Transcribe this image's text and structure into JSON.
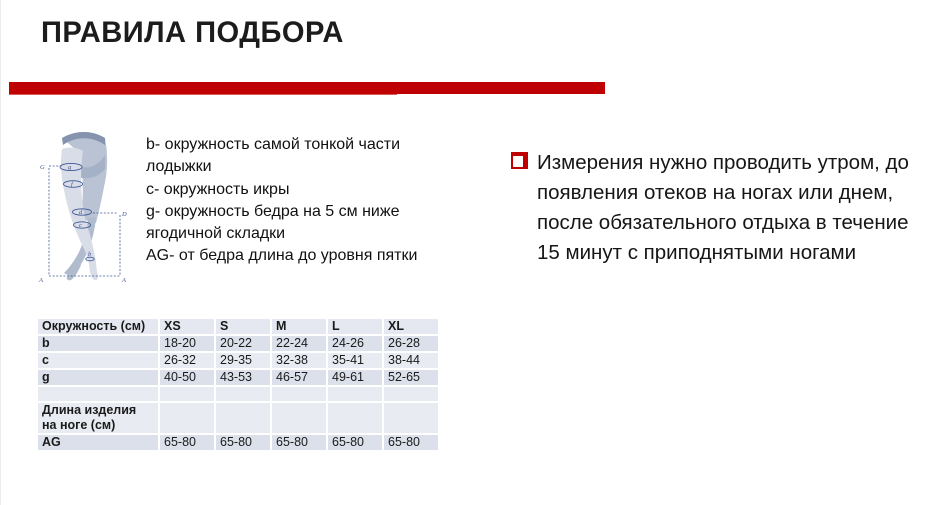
{
  "slide": {
    "title": "ПРАВИЛА ПОДБОРА",
    "accent_color_dark": "#c00101",
    "accent_color_light": "#dc5b58"
  },
  "diagram": {
    "name": "legs-measurement-diagram",
    "labels": {
      "G": "G",
      "g": "g",
      "f": "f",
      "d": "d",
      "D": "D",
      "c": "c",
      "b": "b",
      "A_left": "A",
      "A_right": "A"
    },
    "line_color": "#3f5795"
  },
  "legend": {
    "lines": [
      "b- окружность самой тонкой части лодыжки",
      "c- окружность икры",
      "g- окружность бедра на 5 см ниже ягодичной складки",
      "AG- от бедра длина до уровня пятки"
    ]
  },
  "note": {
    "bullet_icon": "red-checkbox-icon",
    "bullet_color": "#c00000",
    "text": "Измерения нужно проводить утром, до появления отеков на ногах или днем, после обязательного отдыха в течение 15 минут с приподнятыми ногами"
  },
  "size_table": {
    "header": [
      "Окружность (см)",
      "XS",
      "S",
      "M",
      "L",
      "XL"
    ],
    "rows": [
      {
        "label": "b",
        "values": [
          "18-20",
          "20-22",
          "22-24",
          "24-26",
          "26-28"
        ]
      },
      {
        "label": "c",
        "values": [
          "26-32",
          "29-35",
          "32-38",
          "35-41",
          "38-44"
        ]
      },
      {
        "label": "g",
        "values": [
          "40-50",
          "43-53",
          "46-57",
          "49-61",
          "52-65"
        ]
      },
      {
        "label": "",
        "values": [
          "",
          "",
          "",
          "",
          ""
        ]
      },
      {
        "label": "Длина изделия на ноге (см)",
        "values": [
          "",
          "",
          "",
          "",
          ""
        ]
      },
      {
        "label": "AG",
        "values": [
          "65-80",
          "65-80",
          "65-80",
          "65-80",
          "65-80"
        ]
      }
    ],
    "band_pattern": [
      "h",
      "dark",
      "light",
      "dark",
      "light",
      "light",
      "dark"
    ]
  }
}
